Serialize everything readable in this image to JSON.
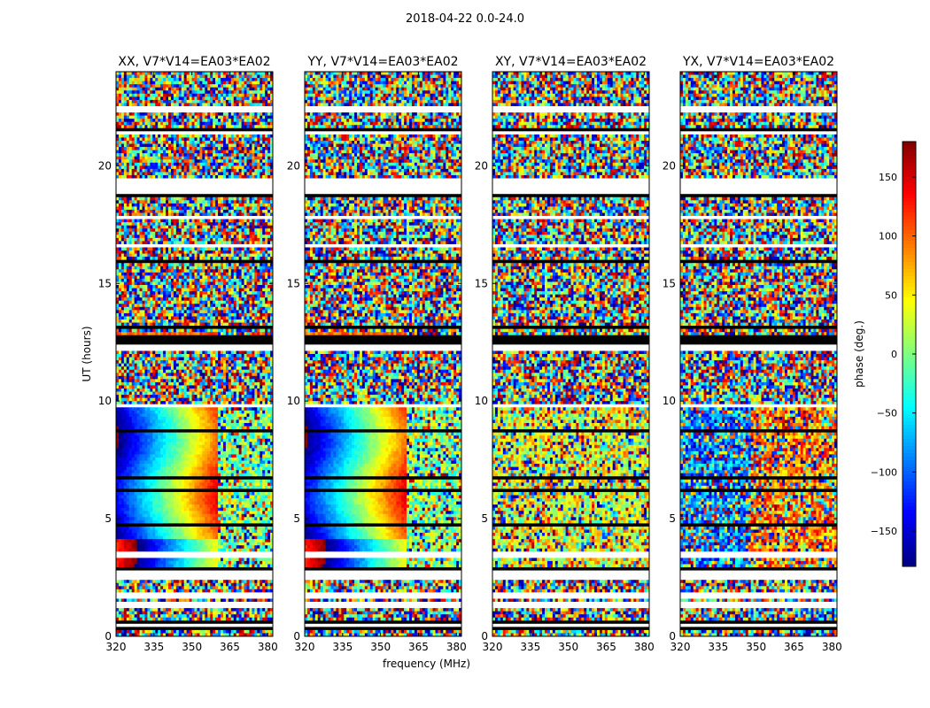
{
  "figure": {
    "suptitle": "2018-04-22 0.0-24.0",
    "xlabel": "frequency (MHz)",
    "ylabel": "UT (hours)",
    "colorbar_label": "phase (deg.)"
  },
  "chart_data": {
    "type": "heatmap",
    "title": "2018-04-22 0.0-24.0",
    "xlabel": "frequency (MHz)",
    "ylabel": "UT (hours)",
    "xlim": [
      320,
      382
    ],
    "ylim": [
      0,
      24
    ],
    "xticks": [
      320,
      335,
      350,
      365,
      380
    ],
    "yticks": [
      0,
      5,
      10,
      15,
      20
    ],
    "colorbar": {
      "label": "phase (deg.)",
      "range": [
        -180,
        180
      ],
      "ticks": [
        -150,
        -100,
        -50,
        0,
        50,
        100,
        150
      ],
      "tick_labels": [
        "−150",
        "−100",
        "−50",
        "0",
        "50",
        "100",
        "150"
      ],
      "colormap": "jet"
    },
    "panels": [
      {
        "title": "XX, V7*V14=EA03*EA02",
        "structure": "coherent"
      },
      {
        "title": "YY, V7*V14=EA03*EA02",
        "structure": "coherent"
      },
      {
        "title": "XY, V7*V14=EA03*EA02",
        "structure": "noise"
      },
      {
        "title": "YX, V7*V14=EA03*EA02",
        "structure": "noise"
      }
    ],
    "flagged_white_hours": [
      [
        0.38,
        0.6
      ],
      [
        1.25,
        1.4
      ],
      [
        1.65,
        1.8
      ],
      [
        2.45,
        2.85
      ],
      [
        3.4,
        3.55
      ],
      [
        9.7,
        9.9
      ],
      [
        12.2,
        12.35
      ],
      [
        16.5,
        16.7
      ],
      [
        17.7,
        17.85
      ],
      [
        18.85,
        19.5
      ],
      [
        21.3,
        21.45
      ],
      [
        22.3,
        22.5
      ]
    ],
    "flagged_black_hours": [
      [
        0.3,
        0.38
      ],
      [
        0.6,
        0.72
      ],
      [
        1.4,
        1.5
      ],
      [
        2.85,
        3.0
      ],
      [
        4.7,
        4.8
      ],
      [
        5.15,
        5.25
      ],
      [
        6.1,
        6.2
      ],
      [
        6.7,
        6.8
      ],
      [
        8.7,
        8.8
      ],
      [
        12.35,
        12.75
      ],
      [
        13.05,
        13.2
      ],
      [
        15.9,
        16.0
      ],
      [
        18.7,
        18.85
      ],
      [
        21.45,
        21.55
      ]
    ]
  }
}
